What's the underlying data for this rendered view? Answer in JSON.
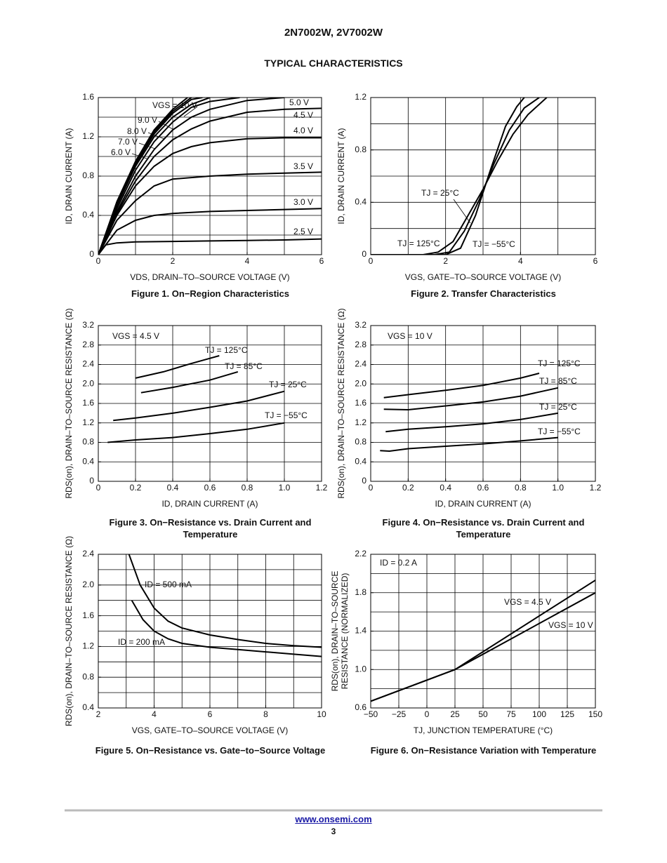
{
  "header": {
    "title": "2N7002W, 2V7002W",
    "subtitle": "TYPICAL CHARACTERISTICS"
  },
  "footer": {
    "link": "www.onsemi.com",
    "page": "3"
  },
  "chart_data": [
    {
      "type": "line",
      "title": "Figure 1. On−Region Characteristics",
      "x_label": "VDS, DRAIN–TO–SOURCE VOLTAGE (V)",
      "y_label": "ID, DRAIN CURRENT (A)",
      "xlim": [
        0,
        6
      ],
      "ylim": [
        0,
        1.6
      ],
      "xticks": [
        0,
        2,
        4,
        6
      ],
      "yticks": [
        0,
        0.4,
        0.8,
        1.2,
        1.6
      ],
      "xgrid": [
        1,
        2,
        3,
        4,
        5
      ],
      "ygrid": [
        0.2,
        0.4,
        0.6,
        0.8,
        1.0,
        1.2,
        1.4
      ],
      "series": [
        {
          "name": "VGS = 10 V",
          "color": "#000000",
          "x": [
            0,
            0.5,
            1,
            1.5,
            2,
            2.4
          ],
          "values": [
            0,
            0.54,
            0.95,
            1.27,
            1.48,
            1.6
          ]
        },
        {
          "name": "9.0 V",
          "color": "#000000",
          "x": [
            0,
            0.5,
            1,
            1.5,
            2,
            2.5
          ],
          "values": [
            0,
            0.53,
            0.94,
            1.25,
            1.46,
            1.6
          ]
        },
        {
          "name": "8.0 V",
          "color": "#000000",
          "x": [
            0,
            0.5,
            1,
            1.5,
            2,
            2.5,
            2.8
          ],
          "values": [
            0,
            0.52,
            0.92,
            1.23,
            1.44,
            1.58,
            1.6
          ]
        },
        {
          "name": "7.0 V",
          "color": "#000000",
          "x": [
            0,
            0.5,
            1,
            1.5,
            2,
            2.5,
            3
          ],
          "values": [
            0,
            0.5,
            0.9,
            1.2,
            1.4,
            1.53,
            1.6
          ]
        },
        {
          "name": "6.0 V",
          "color": "#000000",
          "x": [
            0,
            0.5,
            1,
            1.5,
            2,
            2.5,
            3,
            3.8
          ],
          "values": [
            0,
            0.47,
            0.86,
            1.15,
            1.35,
            1.5,
            1.56,
            1.6
          ]
        },
        {
          "name": "5.0 V",
          "color": "#000000",
          "x": [
            0,
            0.5,
            1,
            1.5,
            2,
            2.5,
            3,
            4,
            5
          ],
          "values": [
            0,
            0.44,
            0.8,
            1.07,
            1.27,
            1.4,
            1.48,
            1.57,
            1.6
          ]
        },
        {
          "name": "4.5 V",
          "color": "#000000",
          "x": [
            0,
            0.5,
            1,
            1.5,
            2,
            2.5,
            3,
            4,
            5,
            6
          ],
          "values": [
            0,
            0.42,
            0.75,
            1.0,
            1.17,
            1.28,
            1.36,
            1.45,
            1.48,
            1.49
          ]
        },
        {
          "name": "4.0 V",
          "color": "#000000",
          "x": [
            0,
            0.5,
            1,
            1.5,
            2,
            2.5,
            3,
            4,
            5,
            6
          ],
          "values": [
            0,
            0.4,
            0.7,
            0.9,
            1.03,
            1.1,
            1.14,
            1.18,
            1.19,
            1.19
          ]
        },
        {
          "name": "3.5 V",
          "color": "#000000",
          "x": [
            0,
            0.5,
            1,
            1.5,
            2,
            3,
            4,
            5,
            6
          ],
          "values": [
            0,
            0.35,
            0.55,
            0.7,
            0.77,
            0.8,
            0.82,
            0.83,
            0.84
          ]
        },
        {
          "name": "3.0 V",
          "color": "#000000",
          "x": [
            0,
            0.5,
            1,
            1.5,
            2,
            3,
            4,
            5,
            6
          ],
          "values": [
            0,
            0.25,
            0.35,
            0.4,
            0.42,
            0.44,
            0.45,
            0.46,
            0.47
          ]
        },
        {
          "name": "2.5 V",
          "color": "#000000",
          "x": [
            0,
            0.2,
            0.5,
            1,
            2,
            3,
            4,
            5,
            6
          ],
          "values": [
            0,
            0.1,
            0.12,
            0.13,
            0.135,
            0.14,
            0.145,
            0.15,
            0.16
          ]
        }
      ]
    },
    {
      "type": "line",
      "title": "Figure 2. Transfer Characteristics",
      "x_label": "VGS, GATE–TO–SOURCE VOLTAGE (V)",
      "y_label": "ID, DRAIN CURRENT (A)",
      "xlim": [
        0,
        6
      ],
      "ylim": [
        0,
        1.2
      ],
      "xticks": [
        0,
        2,
        4,
        6
      ],
      "yticks": [
        0,
        0.4,
        0.8,
        1.2
      ],
      "xgrid": [
        1,
        2,
        3,
        4,
        5
      ],
      "ygrid": [
        0.2,
        0.4,
        0.6,
        0.8,
        1.0
      ],
      "series": [
        {
          "name": "TJ = 125°C",
          "color": "#000000",
          "x": [
            0,
            1.4,
            1.8,
            2.2,
            2.6,
            3,
            3.4,
            3.8,
            4.2,
            4.7
          ],
          "values": [
            0,
            0,
            0.02,
            0.1,
            0.3,
            0.5,
            0.72,
            0.92,
            1.07,
            1.2
          ]
        },
        {
          "name": "TJ = 25°C",
          "color": "#000000",
          "x": [
            0,
            1.7,
            2.1,
            2.5,
            2.9,
            3.3,
            3.7,
            4.1,
            4.5
          ],
          "values": [
            0,
            0,
            0.02,
            0.18,
            0.42,
            0.7,
            0.95,
            1.12,
            1.2
          ]
        },
        {
          "name": "TJ = −55°C",
          "color": "#000000",
          "x": [
            0,
            2,
            2.4,
            2.8,
            3.2,
            3.6,
            3.9,
            4.1
          ],
          "values": [
            0,
            0,
            0.05,
            0.3,
            0.65,
            0.98,
            1.13,
            1.2
          ]
        }
      ]
    },
    {
      "type": "line",
      "title": "Figure 3. On−Resistance vs. Drain Current and Temperature",
      "x_label": "ID, DRAIN CURRENT (A)",
      "y_label": "RDS(on), DRAIN–TO–SOURCE RESISTANCE (Ω)",
      "annotations": [
        "VGS = 4.5 V"
      ],
      "xlim": [
        0,
        1.2
      ],
      "ylim": [
        0,
        3.2
      ],
      "xticks": [
        0,
        0.2,
        0.4,
        0.6,
        0.8,
        {
          "value": 1,
          "label": "1.0"
        },
        1.2
      ],
      "yticks": [
        0,
        0.4,
        0.8,
        1.2,
        1.6,
        {
          "value": 2,
          "label": "2.0"
        },
        2.4,
        2.8,
        3.2
      ],
      "xgrid": [
        0.2,
        0.4,
        0.6,
        0.8,
        1.0
      ],
      "ygrid": [
        0.4,
        0.8,
        1.2,
        1.6,
        2.0,
        2.4,
        2.8
      ],
      "series": [
        {
          "name": "TJ = 125°C",
          "color": "#000000",
          "x": [
            0.2,
            0.35,
            0.5,
            0.65
          ],
          "values": [
            2.12,
            2.25,
            2.42,
            2.58
          ]
        },
        {
          "name": "TJ = 85°C",
          "color": "#000000",
          "x": [
            0.23,
            0.4,
            0.6,
            0.75
          ],
          "values": [
            1.82,
            1.93,
            2.08,
            2.25
          ]
        },
        {
          "name": "TJ = 25°C",
          "color": "#000000",
          "x": [
            0.08,
            0.2,
            0.4,
            0.6,
            0.8,
            1.0
          ],
          "values": [
            1.25,
            1.3,
            1.4,
            1.52,
            1.65,
            1.85
          ]
        },
        {
          "name": "TJ = −55°C",
          "color": "#000000",
          "x": [
            0.05,
            0.2,
            0.4,
            0.6,
            0.8,
            1.0
          ],
          "values": [
            0.8,
            0.85,
            0.9,
            0.98,
            1.07,
            1.2
          ]
        }
      ]
    },
    {
      "type": "line",
      "title": "Figure 4. On−Resistance vs. Drain Current and Temperature",
      "x_label": "ID, DRAIN CURRENT (A)",
      "y_label": "RDS(on), DRAIN–TO–SOURCE RESISTANCE (Ω)",
      "annotations": [
        "VGS = 10 V"
      ],
      "xlim": [
        0,
        1.2
      ],
      "ylim": [
        0,
        3.2
      ],
      "xticks": [
        0,
        0.2,
        0.4,
        0.6,
        0.8,
        {
          "value": 1,
          "label": "1.0"
        },
        1.2
      ],
      "yticks": [
        0,
        0.4,
        0.8,
        1.2,
        1.6,
        {
          "value": 2,
          "label": "2.0"
        },
        2.4,
        2.8,
        3.2
      ],
      "xgrid": [
        0.2,
        0.4,
        0.6,
        0.8,
        1.0
      ],
      "ygrid": [
        0.4,
        0.8,
        1.2,
        1.6,
        2.0,
        2.4,
        2.8
      ],
      "series": [
        {
          "name": "TJ = 125°C",
          "color": "#000000",
          "x": [
            0.07,
            0.2,
            0.4,
            0.6,
            0.8,
            0.9
          ],
          "values": [
            1.72,
            1.78,
            1.87,
            1.97,
            2.12,
            2.22
          ]
        },
        {
          "name": "TJ = 85°C",
          "color": "#000000",
          "x": [
            0.07,
            0.2,
            0.4,
            0.6,
            0.8,
            1.0
          ],
          "values": [
            1.48,
            1.47,
            1.55,
            1.63,
            1.75,
            1.92
          ]
        },
        {
          "name": "TJ = 25°C",
          "color": "#000000",
          "x": [
            0.08,
            0.2,
            0.4,
            0.6,
            0.8,
            1.0
          ],
          "values": [
            1.02,
            1.07,
            1.12,
            1.18,
            1.27,
            1.4
          ]
        },
        {
          "name": "TJ = −55°C",
          "color": "#000000",
          "x": [
            0.05,
            0.1,
            0.2,
            0.4,
            0.6,
            0.8,
            1.0
          ],
          "values": [
            0.63,
            0.62,
            0.67,
            0.72,
            0.77,
            0.83,
            0.9
          ]
        }
      ]
    },
    {
      "type": "line",
      "title": "Figure 5. On−Resistance vs. Gate−to−Source Voltage",
      "x_label": "VGS, GATE–TO–SOURCE VOLTAGE (V)",
      "y_label": "RDS(on), DRAIN–TO–SOURCE RESISTANCE (Ω)",
      "xlim": [
        2,
        10
      ],
      "ylim": [
        0.4,
        2.4
      ],
      "xticks": [
        2,
        4,
        6,
        8,
        10
      ],
      "yticks": [
        0.4,
        0.8,
        1.2,
        1.6,
        {
          "value": 2,
          "label": "2.0"
        },
        2.4
      ],
      "xgrid": [
        3,
        4,
        5,
        6,
        7,
        8,
        9
      ],
      "ygrid": [
        0.6,
        0.8,
        1.0,
        1.2,
        1.4,
        1.6,
        1.8,
        2.0,
        2.2
      ],
      "series": [
        {
          "name": "ID = 500 mA",
          "color": "#000000",
          "x": [
            3.1,
            3.5,
            4,
            4.5,
            5,
            6,
            7,
            8,
            9,
            10
          ],
          "values": [
            2.4,
            2.0,
            1.7,
            1.53,
            1.44,
            1.35,
            1.29,
            1.24,
            1.21,
            1.19
          ]
        },
        {
          "name": "ID = 200 mA",
          "color": "#000000",
          "x": [
            3.2,
            3.6,
            4,
            4.5,
            5,
            6,
            7,
            8,
            9,
            10
          ],
          "values": [
            1.8,
            1.55,
            1.4,
            1.3,
            1.24,
            1.19,
            1.16,
            1.13,
            1.1,
            1.07
          ]
        }
      ]
    },
    {
      "type": "line",
      "title": "Figure 6. On−Resistance Variation with Temperature",
      "x_label": "TJ, JUNCTION TEMPERATURE (°C)",
      "y_label": [
        "RDS(on), DRAIN–TO–SOURCE",
        "RESISTANCE (NORMALIZED)"
      ],
      "annotations": [
        "ID = 0.2 A"
      ],
      "xlim": [
        -50,
        150
      ],
      "ylim": [
        0.6,
        2.2
      ],
      "xticks": [
        {
          "value": -50,
          "label": "−50"
        },
        {
          "value": -25,
          "label": "−25"
        },
        0,
        25,
        50,
        75,
        100,
        125,
        150
      ],
      "yticks": [
        0.6,
        {
          "value": 1,
          "label": "1.0"
        },
        1.4,
        1.8,
        2.2
      ],
      "xgrid": [
        -25,
        0,
        25,
        50,
        75,
        100,
        125
      ],
      "ygrid": [
        0.8,
        1.0,
        1.2,
        1.4,
        1.6,
        1.8,
        2.0
      ],
      "series": [
        {
          "name": "VGS = 4.5 V",
          "color": "#000000",
          "x": [
            -50,
            25,
            150
          ],
          "values": [
            0.67,
            1.0,
            1.93
          ]
        },
        {
          "name": "VGS = 10 V",
          "color": "#000000",
          "x": [
            -50,
            25,
            150
          ],
          "values": [
            0.67,
            1.0,
            1.8
          ]
        }
      ]
    }
  ]
}
